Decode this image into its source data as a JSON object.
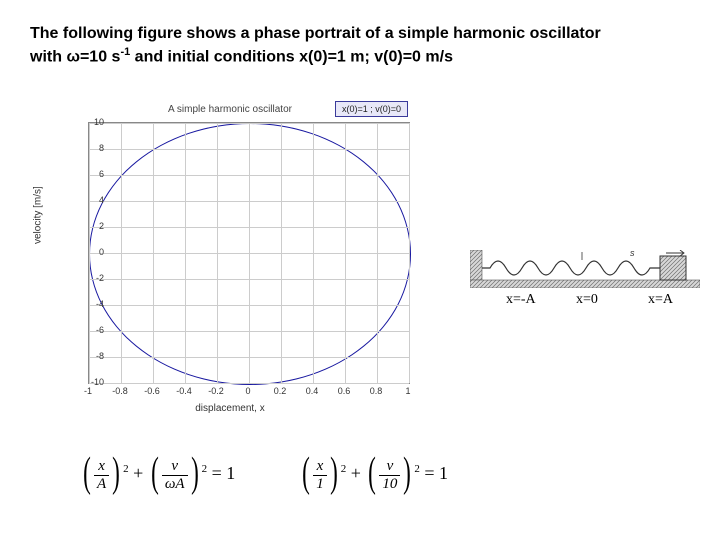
{
  "caption_line1": "The following figure shows a phase portrait of a simple harmonic oscillator",
  "caption_line2_a": "with ω=10 s",
  "caption_line2_sup": "-1",
  "caption_line2_b": " and initial conditions x(0)=1 m; v(0)=0 m/s",
  "chart": {
    "title": "A simple harmonic oscillator",
    "legend": "x(0)=1 ; v(0)=0",
    "ylabel": "velocity [m/s]",
    "xlabel": "displacement, x",
    "xticks": [
      "-1",
      "-0.8",
      "-0.6",
      "-0.4",
      "-0.2",
      "0",
      "0.2",
      "0.4",
      "0.6",
      "0.8",
      "1"
    ],
    "yticks": [
      "-10",
      "-8",
      "-6",
      "-4",
      "-2",
      "0",
      "2",
      "4",
      "6",
      "8",
      "10"
    ],
    "xlim": [
      -1,
      1
    ],
    "ylim": [
      -10,
      10
    ],
    "ellipse_rx": 1.0,
    "ellipse_ry": 10.0,
    "curve_color": "#1818a0",
    "grid_color": "#cccccc",
    "bg_color": "#ffffff"
  },
  "spring": {
    "label_left": "x=-A",
    "label_mid": "x=0",
    "label_right": "x=A",
    "hatch_color": "#707070",
    "mass_fill": "#b8b8c8"
  },
  "equations": {
    "eq1_n1": "x",
    "eq1_d1": "A",
    "eq1_n2": "v",
    "eq1_d2": "ωA",
    "eq2_n1": "x",
    "eq2_d1": "1",
    "eq2_n2": "v",
    "eq2_d2": "10",
    "rhs": "= 1",
    "plus": "+",
    "exp": "2"
  }
}
